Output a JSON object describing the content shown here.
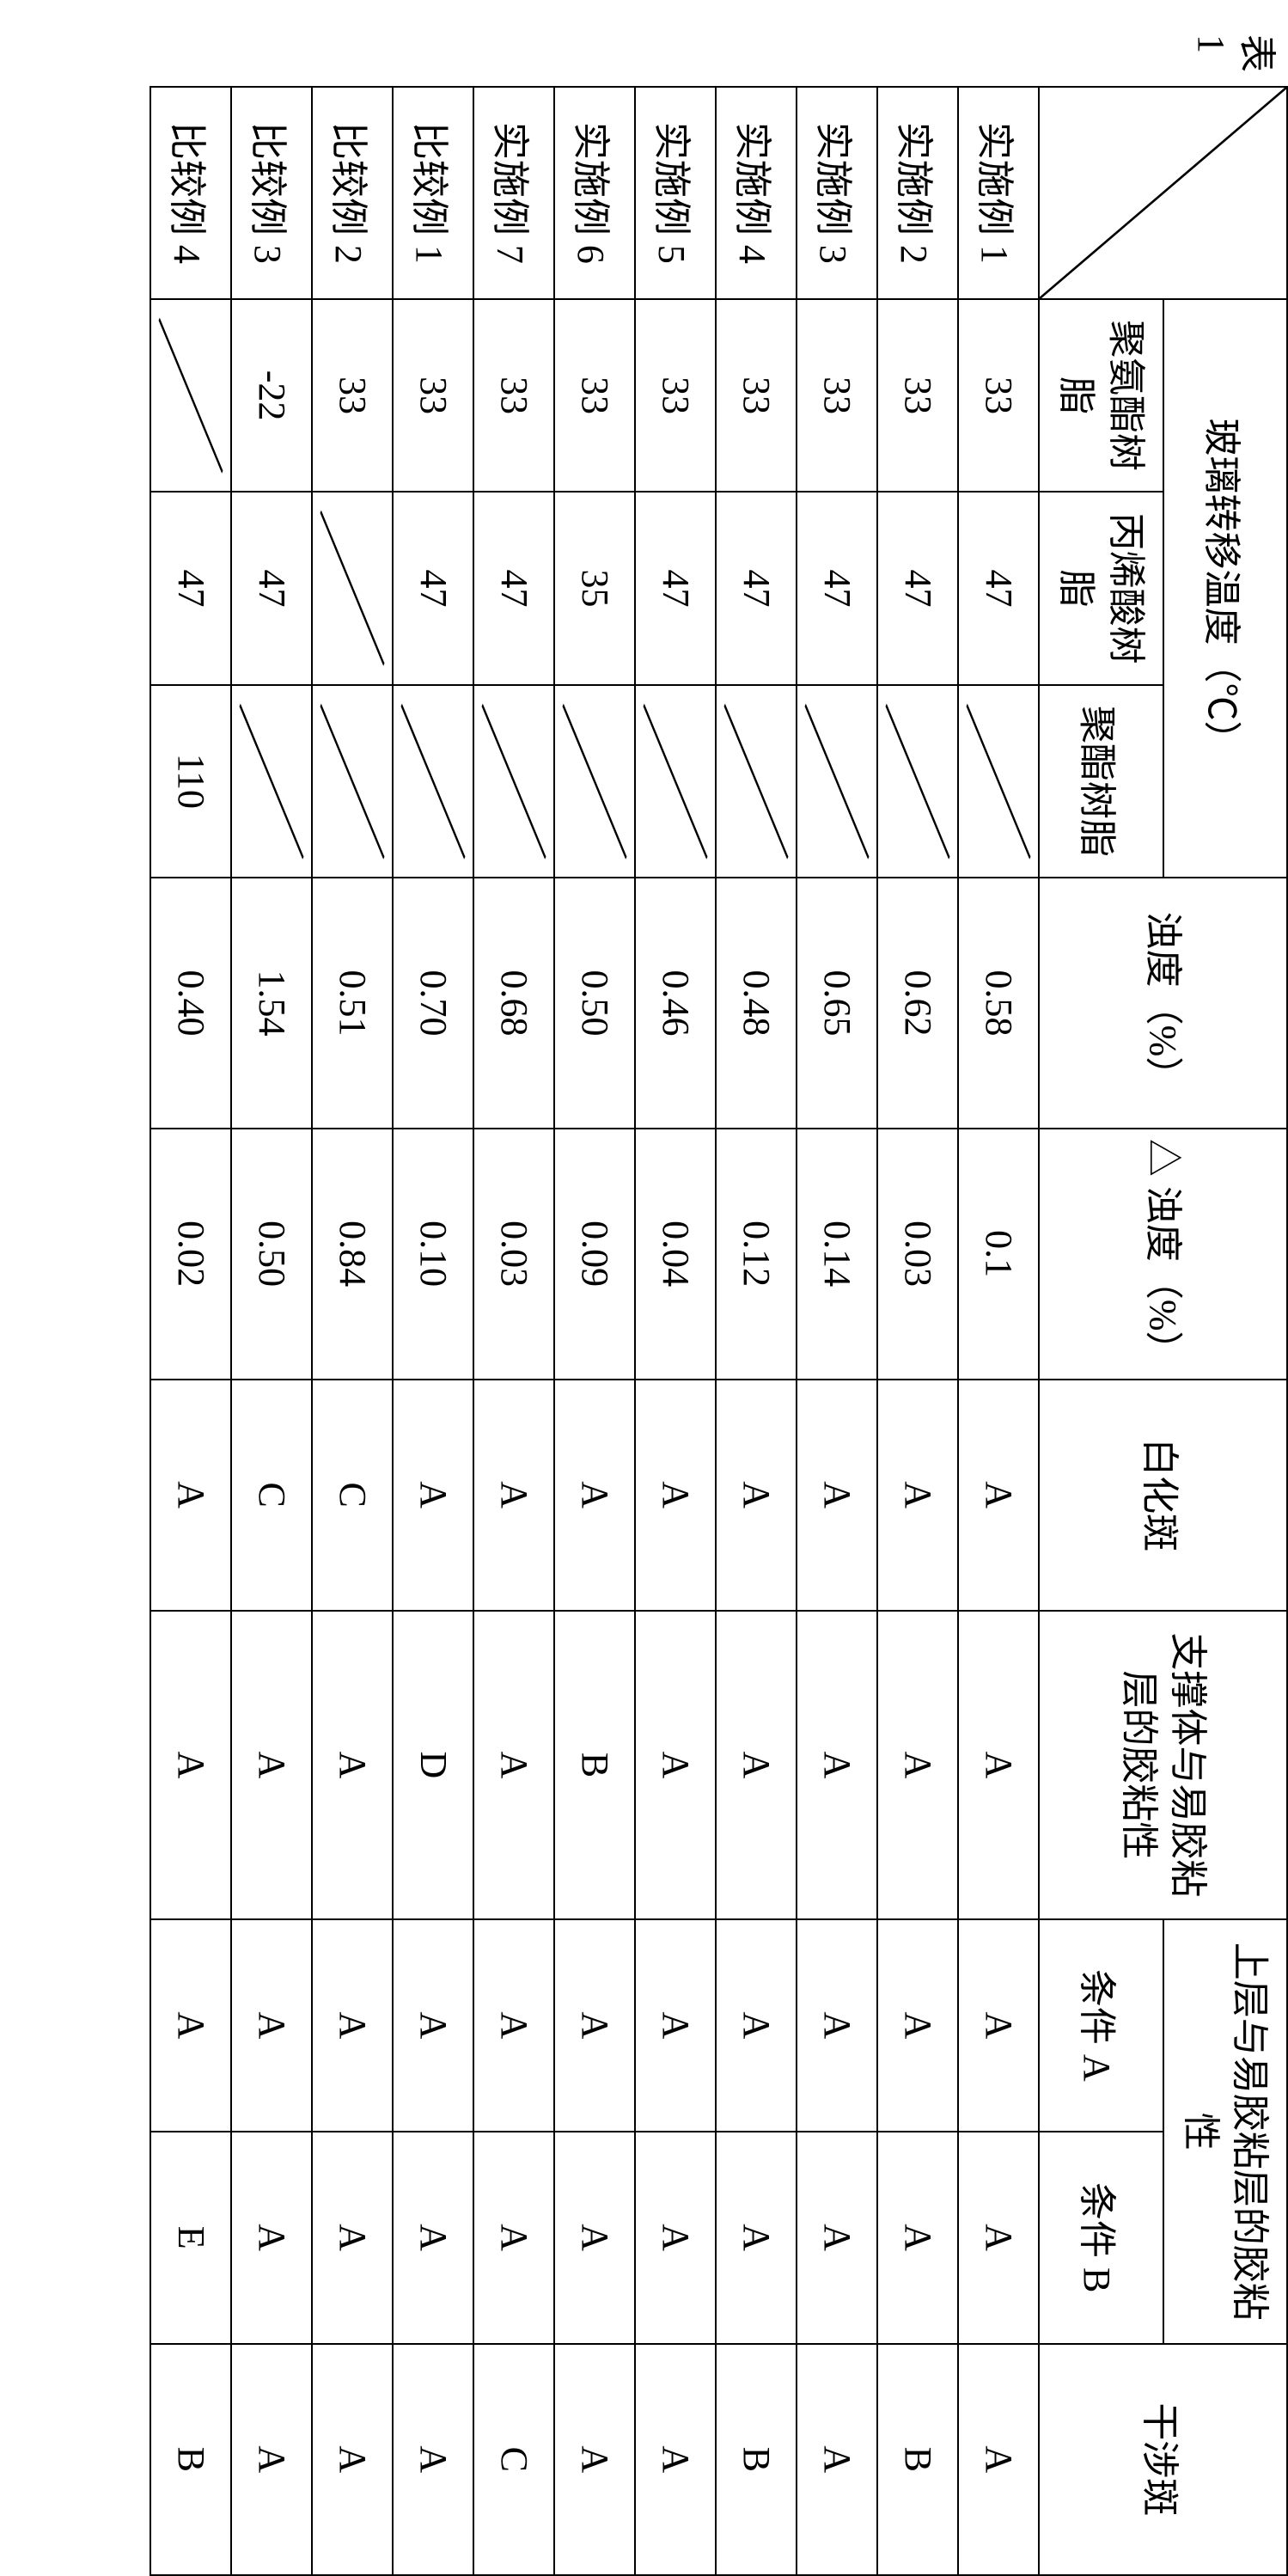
{
  "caption": "表 1",
  "headers": {
    "tg_group": "玻璃转移温度（℃）",
    "tg_poly_urethane": "聚氨酯树脂",
    "tg_acrylic": "丙烯酸树脂",
    "tg_polyester": "聚酯树脂",
    "haze": "浊度（%）",
    "delta_haze": "△ 浊度（%）",
    "whitening": "白化斑",
    "adh_support": "支撑体与易胶粘层的胶粘性",
    "adh_upper_group": "上层与易胶粘层的胶粘性",
    "cond_a": "条件 A",
    "cond_b": "条件 B",
    "interference": "干涉斑"
  },
  "rows": [
    {
      "label": "实施例 1",
      "pu": "33",
      "ac": "47",
      "pe": "/",
      "haze": "0.58",
      "dh": "0.1",
      "wh": "A",
      "adh_s": "A",
      "ca": "A",
      "cb": "A",
      "intf": "A"
    },
    {
      "label": "实施例 2",
      "pu": "33",
      "ac": "47",
      "pe": "/",
      "haze": "0.62",
      "dh": "0.03",
      "wh": "A",
      "adh_s": "A",
      "ca": "A",
      "cb": "A",
      "intf": "B"
    },
    {
      "label": "实施例 3",
      "pu": "33",
      "ac": "47",
      "pe": "/",
      "haze": "0.65",
      "dh": "0.14",
      "wh": "A",
      "adh_s": "A",
      "ca": "A",
      "cb": "A",
      "intf": "A"
    },
    {
      "label": "实施例 4",
      "pu": "33",
      "ac": "47",
      "pe": "/",
      "haze": "0.48",
      "dh": "0.12",
      "wh": "A",
      "adh_s": "A",
      "ca": "A",
      "cb": "A",
      "intf": "B"
    },
    {
      "label": "实施例 5",
      "pu": "33",
      "ac": "47",
      "pe": "/",
      "haze": "0.46",
      "dh": "0.04",
      "wh": "A",
      "adh_s": "A",
      "ca": "A",
      "cb": "A",
      "intf": "A"
    },
    {
      "label": "实施例 6",
      "pu": "33",
      "ac": "35",
      "pe": "/",
      "haze": "0.50",
      "dh": "0.09",
      "wh": "A",
      "adh_s": "B",
      "ca": "A",
      "cb": "A",
      "intf": "A"
    },
    {
      "label": "实施例 7",
      "pu": "33",
      "ac": "47",
      "pe": "/",
      "haze": "0.68",
      "dh": "0.03",
      "wh": "A",
      "adh_s": "A",
      "ca": "A",
      "cb": "A",
      "intf": "C"
    },
    {
      "label": "比较例 1",
      "pu": "33",
      "ac": "47",
      "pe": "/",
      "haze": "0.70",
      "dh": "0.10",
      "wh": "A",
      "adh_s": "D",
      "ca": "A",
      "cb": "A",
      "intf": "A"
    },
    {
      "label": "比较例 2",
      "pu": "33",
      "ac": "/",
      "pe": "/",
      "haze": "0.51",
      "dh": "0.84",
      "wh": "C",
      "adh_s": "A",
      "ca": "A",
      "cb": "A",
      "intf": "A"
    },
    {
      "label": "比较例 3",
      "pu": "-22",
      "ac": "47",
      "pe": "/",
      "haze": "1.54",
      "dh": "0.50",
      "wh": "C",
      "adh_s": "A",
      "ca": "A",
      "cb": "A",
      "intf": "A"
    },
    {
      "label": "比较例 4",
      "pu": "/",
      "ac": "47",
      "pe": "110",
      "haze": "0.40",
      "dh": "0.02",
      "wh": "A",
      "adh_s": "A",
      "ca": "A",
      "cb": "E",
      "intf": "B"
    }
  ],
  "style": {
    "font_size_pt": 44,
    "border_color": "#000000",
    "background_color": "#ffffff",
    "text_color": "#000000"
  }
}
